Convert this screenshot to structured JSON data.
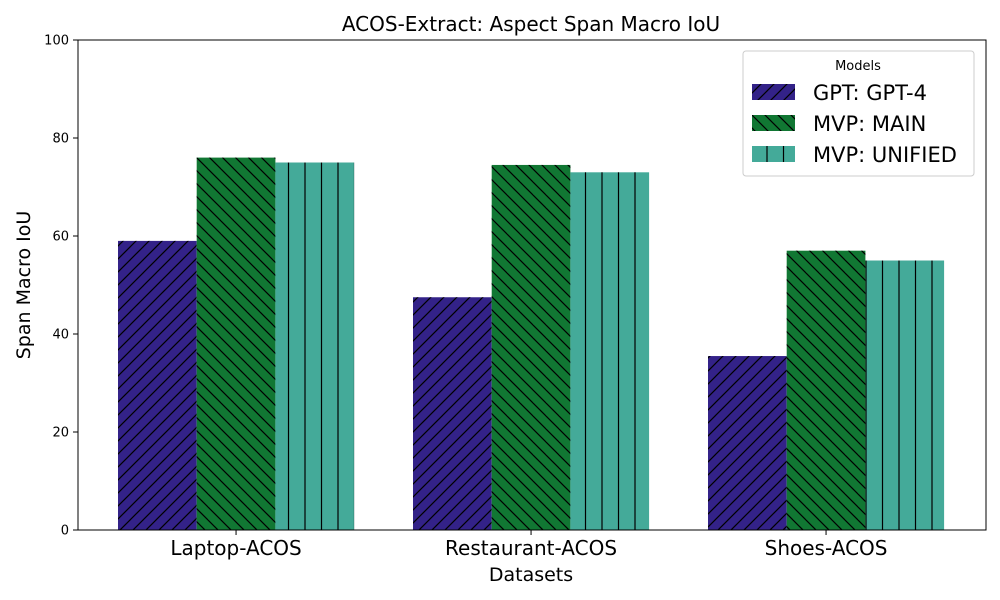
{
  "chart_data": {
    "type": "bar",
    "title": "ACOS-Extract: Aspect Span Macro IoU",
    "xlabel": "Datasets",
    "ylabel": "Span Macro IoU",
    "ylim": [
      0,
      100
    ],
    "yticks": [
      0,
      20,
      40,
      60,
      80,
      100
    ],
    "categories": [
      "Laptop-ACOS",
      "Restaurant-ACOS",
      "Shoes-ACOS"
    ],
    "series": [
      {
        "name": "GPT: GPT-4",
        "values": [
          59.0,
          47.5,
          35.5
        ],
        "color": "#332288",
        "hatch": "forward-diagonal"
      },
      {
        "name": "MVP: MAIN",
        "values": [
          76.0,
          74.5,
          57.0
        ],
        "color": "#117733",
        "hatch": "back-diagonal"
      },
      {
        "name": "MVP: UNIFIED",
        "values": [
          75.0,
          73.0,
          55.0
        ],
        "color": "#44AA99",
        "hatch": "vertical"
      }
    ],
    "legend": {
      "title": "Models",
      "placement": "top-right"
    },
    "grid": false
  }
}
